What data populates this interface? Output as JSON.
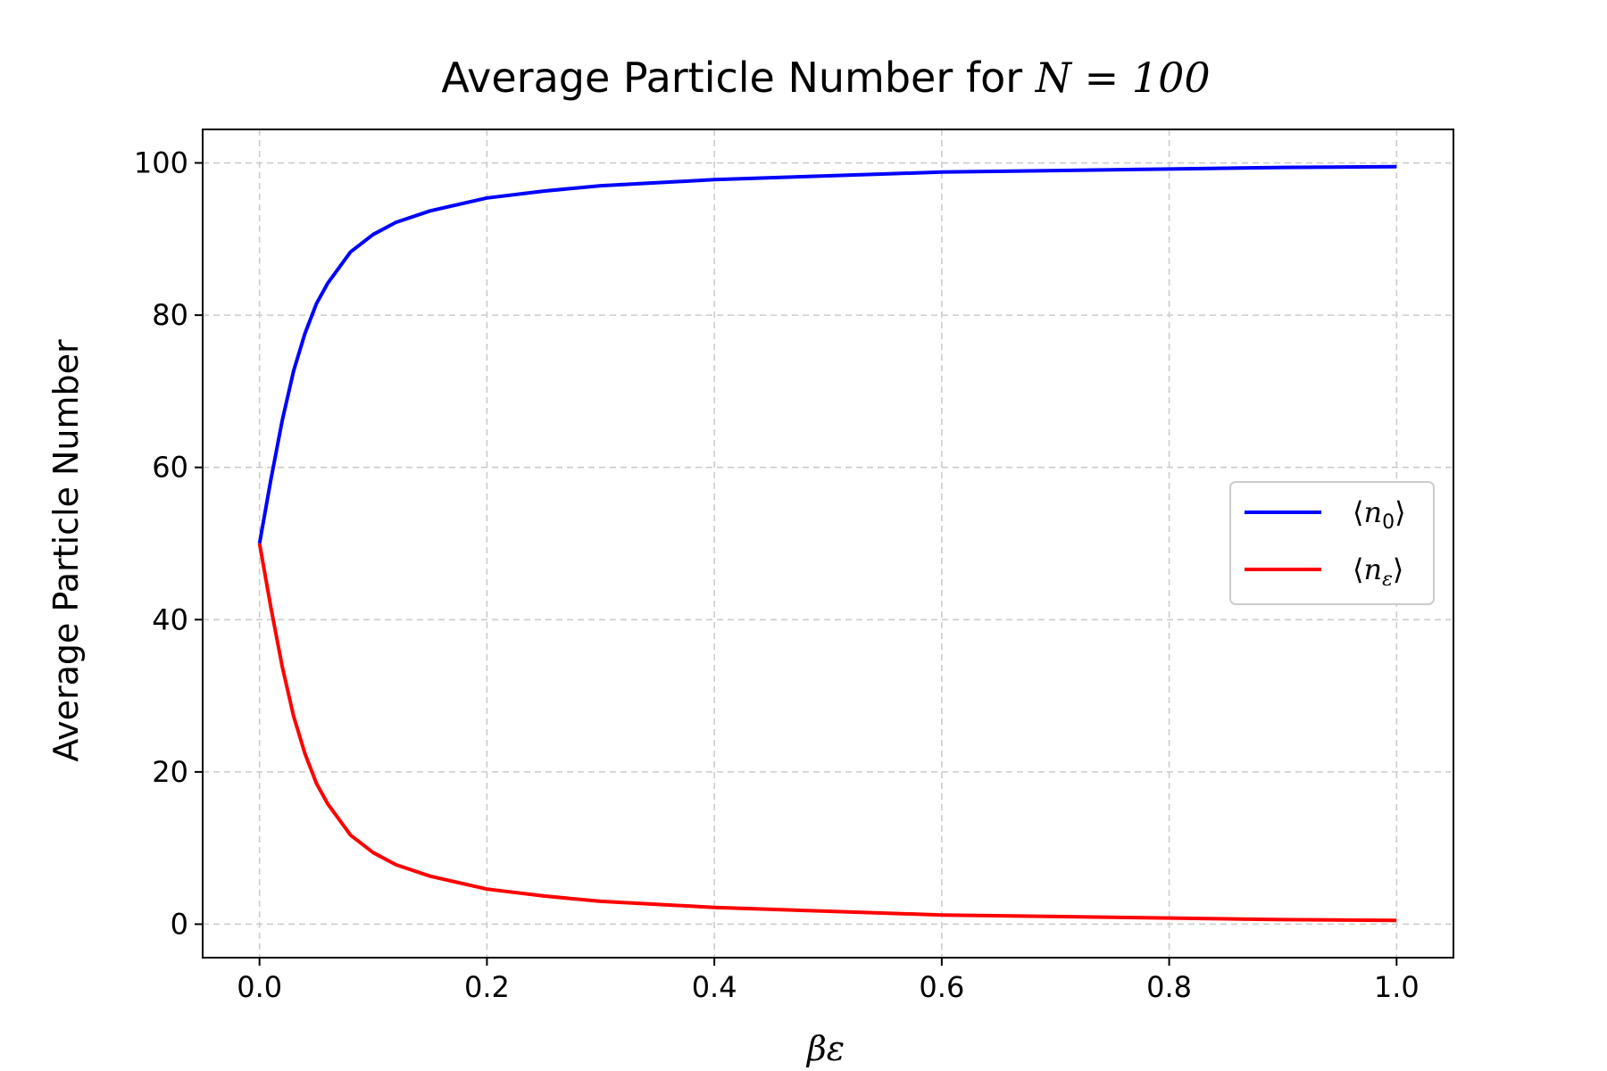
{
  "chart_data": {
    "type": "line",
    "title": "Average Particle Number for ",
    "title_math": "N = 100",
    "xlabel": "βε",
    "ylabel": "Average Particle Number",
    "xlim": [
      -0.05,
      1.05
    ],
    "ylim": [
      -4.4,
      104.4
    ],
    "xticks": [
      0.0,
      0.2,
      0.4,
      0.6,
      0.8,
      1.0
    ],
    "xtick_labels": [
      "0.0",
      "0.2",
      "0.4",
      "0.6",
      "0.8",
      "1.0"
    ],
    "yticks": [
      0,
      20,
      40,
      60,
      80,
      100
    ],
    "ytick_labels": [
      "0",
      "20",
      "40",
      "60",
      "80",
      "100"
    ],
    "grid": true,
    "legend_position": "center-right",
    "series": [
      {
        "name": "⟨n₀⟩",
        "legend_main": "n",
        "legend_sub": "0",
        "color": "#0000ff",
        "x": [
          0.0,
          0.01,
          0.02,
          0.03,
          0.04,
          0.05,
          0.06,
          0.08,
          0.1,
          0.12,
          0.15,
          0.2,
          0.25,
          0.3,
          0.4,
          0.5,
          0.6,
          0.7,
          0.8,
          0.9,
          1.0
        ],
        "y": [
          50.0,
          58.4,
          66.2,
          72.7,
          77.6,
          81.5,
          84.2,
          88.3,
          90.6,
          92.2,
          93.7,
          95.4,
          96.3,
          97.0,
          97.8,
          98.3,
          98.8,
          99.0,
          99.2,
          99.4,
          99.5
        ]
      },
      {
        "name": "⟨nε⟩",
        "legend_main": "n",
        "legend_sub": "ε",
        "color": "#ff0000",
        "x": [
          0.0,
          0.01,
          0.02,
          0.03,
          0.04,
          0.05,
          0.06,
          0.08,
          0.1,
          0.12,
          0.15,
          0.2,
          0.25,
          0.3,
          0.4,
          0.5,
          0.6,
          0.7,
          0.8,
          0.9,
          1.0
        ],
        "y": [
          50.0,
          41.6,
          33.8,
          27.3,
          22.4,
          18.5,
          15.8,
          11.7,
          9.4,
          7.8,
          6.3,
          4.6,
          3.7,
          3.0,
          2.2,
          1.7,
          1.2,
          1.0,
          0.8,
          0.6,
          0.5
        ]
      }
    ]
  }
}
